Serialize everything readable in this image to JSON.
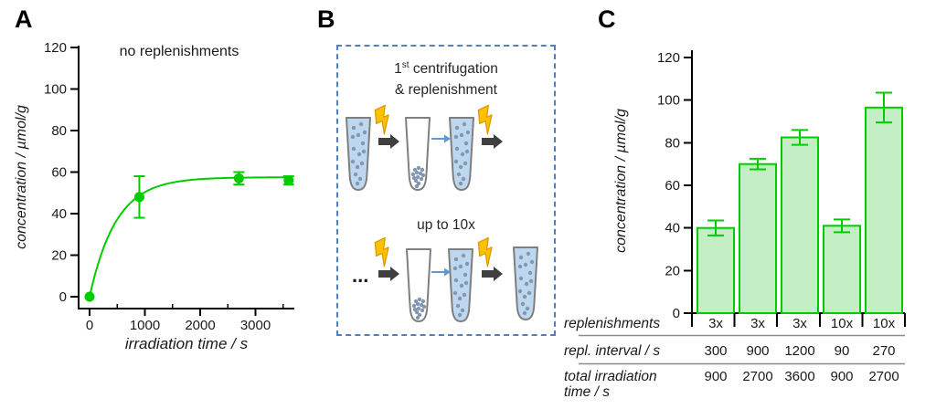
{
  "panels": {
    "a": {
      "label": "A"
    },
    "b": {
      "label": "B"
    },
    "c": {
      "label": "C"
    }
  },
  "chart_data": [
    {
      "id": "panel_a",
      "type": "line",
      "annotation": "no replenishments",
      "xlabel": "irradiation time / s",
      "ylabel": "concentration  /  µmol/g",
      "x": [
        0,
        900,
        2700,
        3600
      ],
      "y": [
        0,
        48,
        57,
        56
      ],
      "yerr": [
        0,
        10,
        3,
        2
      ],
      "xticks": [
        0,
        1000,
        2000,
        3000
      ],
      "xminor": [
        500,
        1500,
        2500,
        3500
      ],
      "yticks": [
        0,
        20,
        40,
        60,
        80,
        100,
        120
      ],
      "xlim": [
        0,
        3700
      ],
      "ylim": [
        0,
        120
      ],
      "fit": {
        "type": "exponential-saturation",
        "plateau": 57.5,
        "tau_s": 480
      },
      "series_color": "#00cc00",
      "legend": "none",
      "grid": false
    },
    {
      "id": "panel_c",
      "type": "bar",
      "ylabel": "concentration  /  µmol/g",
      "categories": [
        "3x",
        "3x",
        "3x",
        "10x",
        "10x"
      ],
      "values": [
        40,
        70,
        82.5,
        41,
        96.5
      ],
      "errors": [
        3.5,
        2.5,
        3.5,
        3,
        7
      ],
      "yticks": [
        0,
        20,
        40,
        60,
        80,
        100,
        120
      ],
      "ylim": [
        0,
        120
      ],
      "bar_fill": "#c4efc4",
      "bar_stroke": "#00cc00",
      "grid": false,
      "table": {
        "category_row_label": "replenishments",
        "rows": [
          {
            "label": "repl. interval / s",
            "values": [
              "300",
              "900",
              "1200",
              "90",
              "270"
            ]
          },
          {
            "label_line1": "total irradiation",
            "label_line2": "time / s",
            "values": [
              "900",
              "2700",
              "3600",
              "900",
              "2700"
            ]
          }
        ]
      }
    }
  ],
  "diagram": {
    "title": {
      "num": "1",
      "sup": "st",
      "rest": " centrifugation",
      "line2": "& replenishment"
    },
    "caption_row2": "up to 10x",
    "ellipsis": "...",
    "row1": [
      "tube-full",
      "flash-arrow",
      "tube-sediment",
      "transfer-arrow",
      "tube-full",
      "flash-arrow"
    ],
    "row2": [
      "ellipsis",
      "flash-arrow",
      "tube-sediment",
      "transfer-arrow",
      "tube-full",
      "flash-arrow",
      "tube-full"
    ],
    "colors": {
      "tube_fill": "#bdd7ee",
      "tube_dot": "#8497b0",
      "tube_outline": "#7f7f7f",
      "flash_fill": "#ffc000",
      "flash_outline": "#e09900",
      "process_arrow": "#3f3f3f",
      "transfer_arrow": "#5b9bd5",
      "box_border": "#4f81bd"
    }
  },
  "style_colors": {
    "series_green": "#00cc00",
    "table_line": "#8c8c8c",
    "axis": "#000000"
  }
}
